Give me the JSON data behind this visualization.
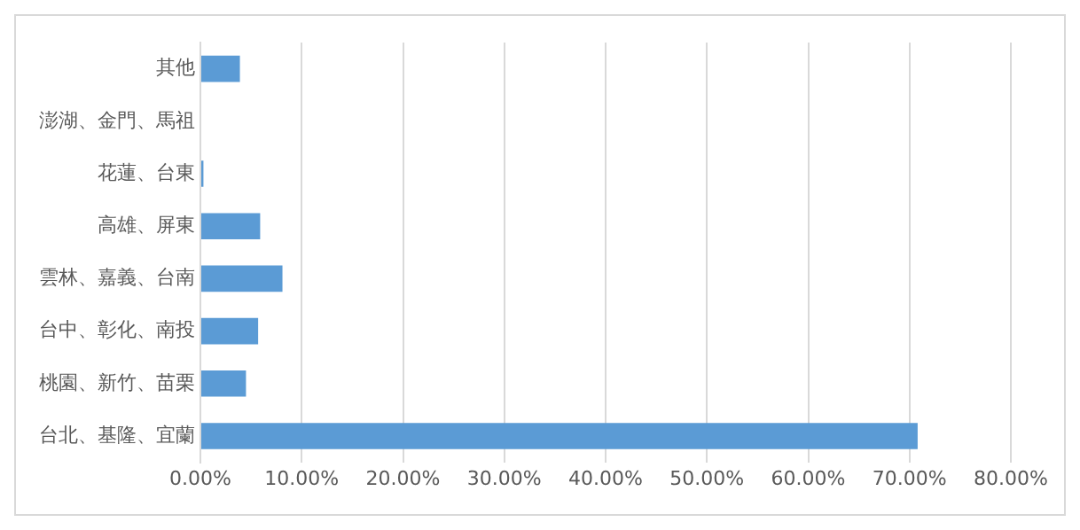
{
  "chart_data": {
    "type": "bar",
    "orientation": "horizontal",
    "categories": [
      "其他",
      "澎湖、金門、馬祖",
      "花蓮、台東",
      "高雄、屏東",
      "雲林、嘉義、台南",
      "台中、彰化、南投",
      "桃園、新竹、苗栗",
      "台北、基隆、宜蘭"
    ],
    "values": [
      3.9,
      0,
      0.3,
      5.9,
      8.1,
      5.7,
      4.5,
      70.8
    ],
    "color": "#5b9bd5",
    "xlim": [
      0,
      80
    ],
    "xticks": [
      {
        "value": 0,
        "label": "0.00%"
      },
      {
        "value": 10,
        "label": "10.00%"
      },
      {
        "value": 20,
        "label": "20.00%"
      },
      {
        "value": 30,
        "label": "30.00%"
      },
      {
        "value": 40,
        "label": "40.00%"
      },
      {
        "value": 50,
        "label": "50.00%"
      },
      {
        "value": 60,
        "label": "60.00%"
      },
      {
        "value": 70,
        "label": "70.00%"
      },
      {
        "value": 80,
        "label": "80.00%"
      }
    ],
    "grid": "x",
    "legend": false
  }
}
